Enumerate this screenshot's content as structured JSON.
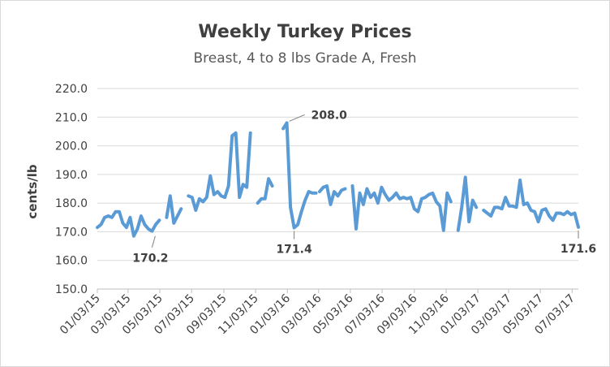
{
  "colors": {
    "series": "#5b9bd5"
  },
  "chart_data": {
    "type": "line",
    "title": "Weekly Turkey Prices",
    "subtitle": "Breast, 4 to 8 lbs Grade A, Fresh",
    "xlabel": "",
    "ylabel": "cents/lb",
    "ylim": [
      150,
      220
    ],
    "yticks": [
      "150.0",
      "160.0",
      "170.0",
      "180.0",
      "190.0",
      "200.0",
      "210.0",
      "220.0"
    ],
    "xticks": [
      "01/03/15",
      "03/03/15",
      "05/03/15",
      "07/03/15",
      "09/03/15",
      "11/03/15",
      "01/03/16",
      "03/03/16",
      "05/03/16",
      "07/03/16",
      "09/03/16",
      "11/03/16",
      "01/03/17",
      "03/03/17",
      "05/03/17",
      "07/03/17"
    ],
    "grid": true,
    "legend": "none",
    "series": [
      {
        "segments": [
          [
            [
              "01/03/15",
              171.5
            ],
            [
              "01/10/15",
              172.5
            ],
            [
              "01/17/15",
              175.0
            ],
            [
              "01/24/15",
              175.5
            ],
            [
              "01/31/15",
              175.0
            ],
            [
              "02/07/15",
              177.0
            ],
            [
              "02/14/15",
              177.0
            ],
            [
              "02/21/15",
              173.0
            ],
            [
              "02/28/15",
              171.5
            ],
            [
              "03/07/15",
              175.0
            ],
            [
              "03/14/15",
              168.5
            ],
            [
              "03/21/15",
              171.0
            ],
            [
              "03/28/15",
              175.5
            ],
            [
              "04/04/15",
              172.5
            ],
            [
              "04/11/15",
              171.0
            ],
            [
              "04/18/15",
              170.2
            ],
            [
              "04/25/15",
              172.5
            ],
            [
              "05/02/15",
              174.0
            ]
          ],
          [
            [
              "05/16/15",
              175.0
            ],
            [
              "05/23/15",
              182.5
            ],
            [
              "05/30/15",
              173.0
            ],
            [
              "06/06/15",
              175.5
            ],
            [
              "06/13/15",
              178.0
            ]
          ],
          [
            [
              "06/27/15",
              182.5
            ],
            [
              "07/04/15",
              182.0
            ],
            [
              "07/11/15",
              177.5
            ],
            [
              "07/18/15",
              181.5
            ],
            [
              "07/25/15",
              180.5
            ],
            [
              "08/01/15",
              182.0
            ],
            [
              "08/08/15",
              189.5
            ],
            [
              "08/15/15",
              183.0
            ],
            [
              "08/22/15",
              184.0
            ],
            [
              "08/29/15",
              182.5
            ],
            [
              "09/05/15",
              182.0
            ],
            [
              "09/12/15",
              186.0
            ],
            [
              "09/19/15",
              203.5
            ],
            [
              "09/26/15",
              204.5
            ],
            [
              "10/03/15",
              182.0
            ],
            [
              "10/10/15",
              186.5
            ],
            [
              "10/17/15",
              185.5
            ],
            [
              "10/24/15",
              204.5
            ]
          ],
          [
            [
              "11/07/15",
              180.0
            ],
            [
              "11/14/15",
              181.5
            ],
            [
              "11/21/15",
              181.5
            ],
            [
              "11/28/15",
              188.5
            ],
            [
              "12/05/15",
              186.0
            ]
          ],
          [
            [
              "12/26/15",
              206.0
            ],
            [
              "01/02/16",
              208.0
            ],
            [
              "01/09/16",
              178.5
            ],
            [
              "01/16/16",
              171.4
            ],
            [
              "01/23/16",
              172.5
            ],
            [
              "01/30/16",
              177.0
            ],
            [
              "02/06/16",
              181.0
            ],
            [
              "02/13/16",
              184.0
            ],
            [
              "02/20/16",
              183.5
            ],
            [
              "02/27/16",
              183.5
            ]
          ],
          [
            [
              "03/05/16",
              184.0
            ],
            [
              "03/12/16",
              185.5
            ],
            [
              "03/19/16",
              186.0
            ],
            [
              "03/26/16",
              179.5
            ],
            [
              "04/02/16",
              184.0
            ],
            [
              "04/09/16",
              182.5
            ],
            [
              "04/16/16",
              184.5
            ],
            [
              "04/23/16",
              185.0
            ]
          ],
          [
            [
              "05/07/16",
              186.0
            ],
            [
              "05/14/16",
              171.0
            ],
            [
              "05/21/16",
              183.5
            ],
            [
              "05/28/16",
              179.5
            ],
            [
              "06/04/16",
              185.0
            ],
            [
              "06/11/16",
              182.0
            ],
            [
              "06/18/16",
              183.5
            ],
            [
              "06/25/16",
              180.0
            ],
            [
              "07/02/16",
              185.5
            ],
            [
              "07/09/16",
              183.0
            ],
            [
              "07/16/16",
              181.0
            ],
            [
              "07/23/16",
              182.0
            ],
            [
              "07/30/16",
              183.5
            ],
            [
              "08/06/16",
              181.5
            ],
            [
              "08/13/16",
              182.0
            ],
            [
              "08/20/16",
              181.5
            ],
            [
              "08/27/16",
              182.0
            ],
            [
              "09/03/16",
              178.0
            ],
            [
              "09/10/16",
              177.0
            ],
            [
              "09/17/16",
              181.5
            ],
            [
              "09/24/16",
              182.0
            ],
            [
              "10/01/16",
              183.0
            ],
            [
              "10/08/16",
              183.5
            ],
            [
              "10/15/16",
              180.5
            ],
            [
              "10/22/16",
              179.0
            ],
            [
              "10/29/16",
              170.5
            ],
            [
              "11/05/16",
              183.5
            ],
            [
              "11/12/16",
              180.5
            ]
          ],
          [
            [
              "11/26/16",
              170.5
            ],
            [
              "12/03/16",
              178.5
            ],
            [
              "12/10/16",
              189.0
            ],
            [
              "12/17/16",
              173.5
            ],
            [
              "12/24/16",
              181.0
            ],
            [
              "12/31/16",
              178.5
            ]
          ],
          [
            [
              "01/14/17",
              177.5
            ],
            [
              "01/21/17",
              176.5
            ],
            [
              "01/28/17",
              175.5
            ],
            [
              "02/04/17",
              178.5
            ],
            [
              "02/11/17",
              178.5
            ],
            [
              "02/18/17",
              178.0
            ],
            [
              "02/25/17",
              182.0
            ],
            [
              "03/04/17",
              179.0
            ],
            [
              "03/11/17",
              179.0
            ],
            [
              "03/18/17",
              178.5
            ],
            [
              "03/25/17",
              188.0
            ],
            [
              "04/01/17",
              179.5
            ],
            [
              "04/08/17",
              180.0
            ],
            [
              "04/15/17",
              177.5
            ],
            [
              "04/22/17",
              177.0
            ],
            [
              "04/29/17",
              173.5
            ],
            [
              "05/06/17",
              177.5
            ],
            [
              "05/13/17",
              178.0
            ],
            [
              "05/20/17",
              175.5
            ],
            [
              "05/27/17",
              174.0
            ],
            [
              "06/03/17",
              176.5
            ],
            [
              "06/10/17",
              176.5
            ],
            [
              "06/17/17",
              176.0
            ],
            [
              "06/24/17",
              177.0
            ],
            [
              "07/01/17",
              176.0
            ],
            [
              "07/08/17",
              176.5
            ],
            [
              "07/15/17",
              171.6
            ]
          ]
        ]
      }
    ],
    "annotations": [
      {
        "text": "170.2",
        "date": "04/18/15",
        "value": 170.2,
        "placement": "below-right"
      },
      {
        "text": "208.0",
        "date": "01/02/16",
        "value": 208.0,
        "placement": "right"
      },
      {
        "text": "171.4",
        "date": "01/16/16",
        "value": 171.4,
        "placement": "below"
      },
      {
        "text": "171.6",
        "date": "07/15/17",
        "value": 171.6,
        "placement": "below"
      }
    ]
  }
}
